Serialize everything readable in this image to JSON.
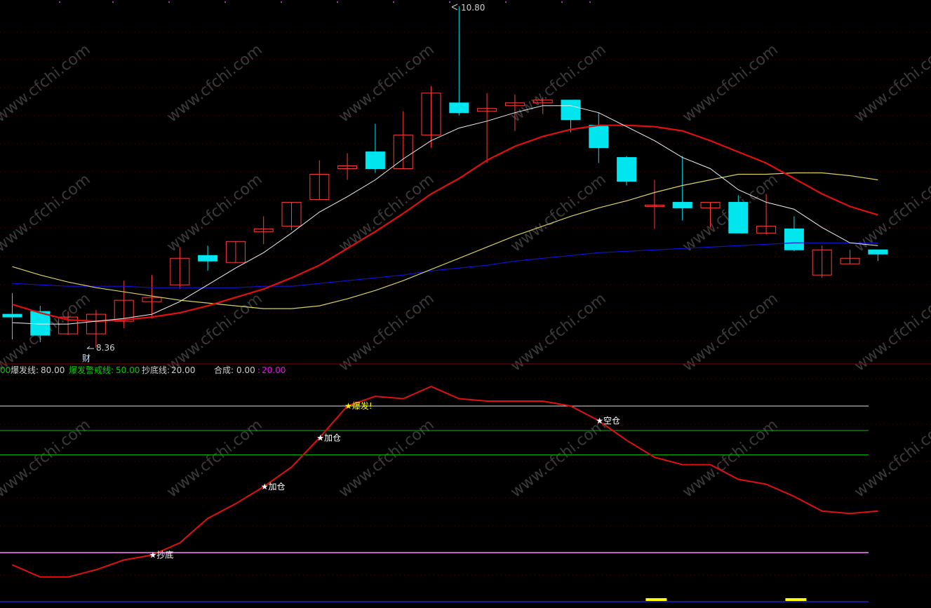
{
  "watermark": "www.cfchi.com",
  "colors": {
    "background": "#000000",
    "up_candle": "#ff3b3b",
    "down_candle": "#00e5ee",
    "ma_short": "#f0f0f0",
    "ma_red": "#e01010",
    "ma_yellow": "#d8d060",
    "ma_blue": "#1010e0",
    "indicator_line": "#e01010",
    "grid_dots": "#5a0000",
    "panel_separator": "#8a0000",
    "ref_white": "#e0e0e0",
    "ref_green": "#00c000",
    "ref_magenta": "#ff80ff",
    "bottom_line": "#2020c0",
    "marker_yellow": "#ffff00",
    "label_gray": "#d0d0d0",
    "label_green": "#00d000",
    "label_magenta": "#ff00ff",
    "label_yellow": "#ffff00",
    "label_white": "#ffffff"
  },
  "price_panel": {
    "high_label": "10.80",
    "low_label": "8.36",
    "cai_label": "财"
  },
  "indicator_panel": {
    "legend": {
      "cut_prefix": "00",
      "explode_name": "爆发线:",
      "explode_value": "80.00",
      "warn_name": "爆发警戒线:",
      "warn_value": "50.00",
      "bottom_name": "抄底线:",
      "bottom_value": "20.00",
      "combo_name": "合成:",
      "combo_value": "0.00",
      "combo_sep": ":",
      "combo_value2": "20.00"
    },
    "signals": [
      {
        "text": "★抄底",
        "bar": 5
      },
      {
        "text": "★加仓",
        "bar": 9
      },
      {
        "text": "★加仓",
        "bar": 11
      },
      {
        "text": "★爆发!",
        "bar": 12
      },
      {
        "text": "★空仓",
        "bar": 21
      }
    ]
  },
  "chart_data": {
    "type": "candlestick",
    "bars": [
      {
        "open": 8.6,
        "close": 8.58,
        "high": 8.75,
        "low": 8.42
      },
      {
        "open": 8.62,
        "close": 8.45,
        "high": 8.66,
        "low": 8.4
      },
      {
        "open": 8.46,
        "close": 8.58,
        "high": 8.62,
        "low": 8.45
      },
      {
        "open": 8.46,
        "close": 8.6,
        "high": 8.63,
        "low": 8.36
      },
      {
        "open": 8.55,
        "close": 8.7,
        "high": 8.84,
        "low": 8.5
      },
      {
        "open": 8.69,
        "close": 8.72,
        "high": 8.88,
        "low": 8.57
      },
      {
        "open": 8.81,
        "close": 9.0,
        "high": 9.08,
        "low": 8.78
      },
      {
        "open": 9.02,
        "close": 8.98,
        "high": 9.09,
        "low": 8.91
      },
      {
        "open": 8.97,
        "close": 9.12,
        "high": 9.12,
        "low": 8.97
      },
      {
        "open": 9.19,
        "close": 9.21,
        "high": 9.3,
        "low": 9.1
      },
      {
        "open": 9.23,
        "close": 9.4,
        "high": 9.4,
        "low": 9.2
      },
      {
        "open": 9.42,
        "close": 9.6,
        "high": 9.7,
        "low": 9.42
      },
      {
        "open": 9.64,
        "close": 9.66,
        "high": 9.75,
        "low": 9.56
      },
      {
        "open": 9.76,
        "close": 9.64,
        "high": 9.96,
        "low": 9.61
      },
      {
        "open": 9.64,
        "close": 9.88,
        "high": 10.05,
        "low": 9.64
      },
      {
        "open": 9.88,
        "close": 10.18,
        "high": 10.23,
        "low": 9.79
      },
      {
        "open": 10.11,
        "close": 10.04,
        "high": 10.8,
        "low": 10.02
      },
      {
        "open": 10.05,
        "close": 10.07,
        "high": 10.18,
        "low": 9.68
      },
      {
        "open": 10.09,
        "close": 10.11,
        "high": 10.17,
        "low": 9.91
      },
      {
        "open": 10.11,
        "close": 10.13,
        "high": 10.15,
        "low": 10.03
      },
      {
        "open": 10.13,
        "close": 9.99,
        "high": 10.13,
        "low": 9.9
      },
      {
        "open": 9.95,
        "close": 9.79,
        "high": 10.04,
        "low": 9.68
      },
      {
        "open": 9.72,
        "close": 9.55,
        "high": 9.73,
        "low": 9.52
      },
      {
        "open": 9.37,
        "close": 9.38,
        "high": 9.56,
        "low": 9.21
      },
      {
        "open": 9.4,
        "close": 9.36,
        "high": 9.73,
        "low": 9.27
      },
      {
        "open": 9.36,
        "close": 9.4,
        "high": 9.4,
        "low": 9.22
      },
      {
        "open": 9.4,
        "close": 9.18,
        "high": 9.45,
        "low": 9.18
      },
      {
        "open": 9.18,
        "close": 9.23,
        "high": 9.46,
        "low": 9.17
      },
      {
        "open": 9.21,
        "close": 9.06,
        "high": 9.3,
        "low": 9.05
      },
      {
        "open": 8.88,
        "close": 9.06,
        "high": 9.09,
        "low": 8.86
      },
      {
        "open": 8.96,
        "close": 9.0,
        "high": 9.06,
        "low": 8.96
      },
      {
        "open": 9.06,
        "close": 9.03,
        "high": 9.06,
        "low": 8.98
      }
    ],
    "ma_short": [
      8.54,
      8.53,
      8.53,
      8.55,
      8.57,
      8.6,
      8.69,
      8.81,
      8.93,
      9.04,
      9.18,
      9.33,
      9.44,
      9.56,
      9.71,
      9.84,
      9.93,
      9.98,
      10.04,
      10.09,
      10.09,
      10.04,
      9.94,
      9.84,
      9.72,
      9.64,
      9.49,
      9.4,
      9.35,
      9.22,
      9.11,
      9.09
    ],
    "ma_red": [
      8.67,
      8.61,
      8.56,
      8.55,
      8.56,
      8.58,
      8.61,
      8.66,
      8.72,
      8.78,
      8.86,
      8.95,
      9.07,
      9.19,
      9.32,
      9.46,
      9.57,
      9.7,
      9.8,
      9.87,
      9.92,
      9.95,
      9.95,
      9.94,
      9.91,
      9.84,
      9.76,
      9.68,
      9.57,
      9.46,
      9.37,
      9.31
    ],
    "ma_yellow": [
      8.94,
      8.88,
      8.83,
      8.79,
      8.76,
      8.73,
      8.7,
      8.68,
      8.66,
      8.64,
      8.64,
      8.66,
      8.71,
      8.77,
      8.84,
      8.92,
      9.0,
      9.08,
      9.16,
      9.23,
      9.3,
      9.36,
      9.41,
      9.47,
      9.52,
      9.56,
      9.6,
      9.6,
      9.61,
      9.61,
      9.59,
      9.56
    ],
    "ma_blue": [
      8.82,
      8.81,
      8.8,
      8.8,
      8.8,
      8.79,
      8.79,
      8.79,
      8.79,
      8.8,
      8.8,
      8.82,
      8.84,
      8.86,
      8.88,
      8.91,
      8.93,
      8.95,
      8.98,
      9.0,
      9.02,
      9.04,
      9.05,
      9.06,
      9.07,
      9.08,
      9.09,
      9.1,
      9.11,
      9.11,
      9.11,
      9.11
    ],
    "indicator": [
      15,
      10,
      10,
      13,
      17,
      19,
      24,
      34,
      40,
      47,
      55,
      67,
      80,
      84,
      83,
      88,
      83,
      82,
      82,
      82,
      80,
      74,
      66,
      59,
      56,
      56,
      50,
      48,
      43,
      37,
      36,
      37
    ],
    "indicator_levels": [
      80,
      70,
      60,
      20
    ],
    "bottom_markers": [
      23,
      28
    ]
  }
}
